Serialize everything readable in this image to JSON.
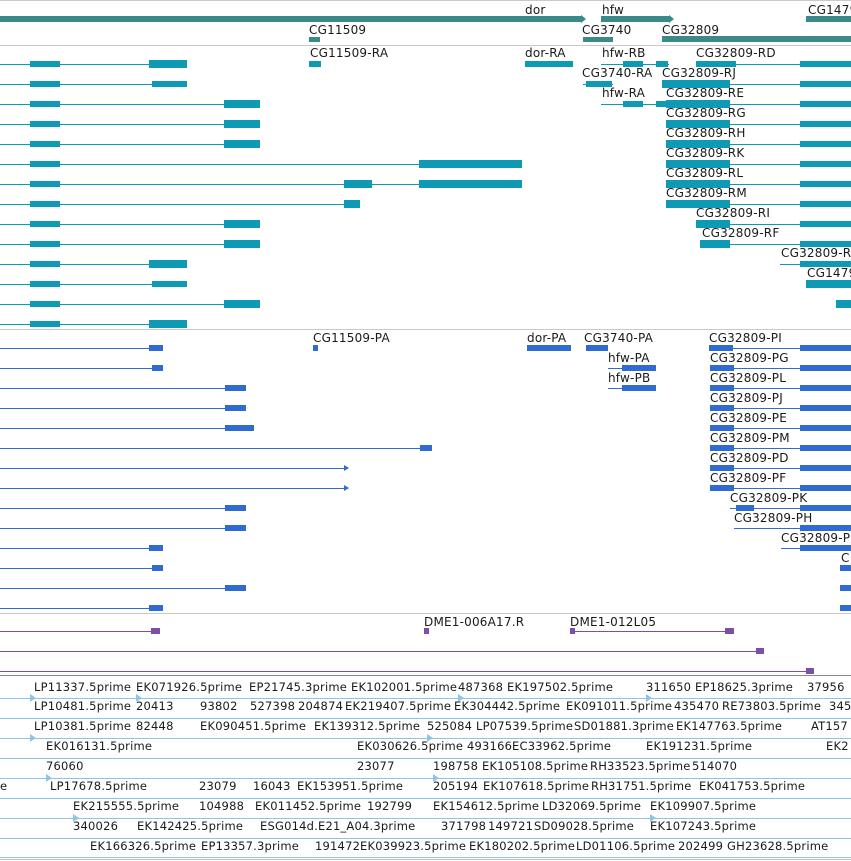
{
  "genes": {
    "labels": [
      "dor",
      "hfw",
      "CG1479",
      "CG11509",
      "CG3740",
      "CG32809"
    ]
  },
  "transcripts": {
    "labels": [
      "CG11509-RA",
      "dor-RA",
      "hfw-RB",
      "CG32809-RD",
      "CG3740-RA",
      "CG32809-RJ",
      "hfw-RA",
      "CG32809-RE",
      "CG32809-RG",
      "CG32809-RH",
      "CG32809-RK",
      "CG32809-RL",
      "CG32809-RM",
      "CG32809-RI",
      "CG32809-RF",
      "CG32809-R",
      "CG1479"
    ]
  },
  "proteins": {
    "labels": [
      "CG11509-PA",
      "dor-PA",
      "CG3740-PA",
      "CG32809-PI",
      "hfw-PA",
      "CG32809-PG",
      "hfw-PB",
      "CG32809-PL",
      "CG32809-PJ",
      "CG32809-PE",
      "CG32809-PM",
      "CG32809-PD",
      "CG32809-PF",
      "CG32809-PK",
      "CG32809-PH",
      "CG32809-P",
      "C"
    ]
  },
  "clones": {
    "labels": [
      "DME1-006A17.R",
      "DME1-012L05"
    ]
  },
  "ests": {
    "rows": [
      [
        "LP11337.5prime",
        "EK071926.5prime",
        "EP21745.3prime",
        "EK102001.5prime",
        "487368",
        "EK197502.5prime",
        "311650",
        "EP18625.3prime",
        "37956"
      ],
      [
        "LP10481.5prime",
        "20413",
        "93802",
        "527398",
        "204874",
        "EK219407.5prime",
        "EK304442.5prime",
        "EK091011.5prime",
        "435470",
        "RE73803.5prime",
        "345"
      ],
      [
        "LP10381.5prime",
        "82448",
        "EK090451.5prime",
        "EK139312.5prime",
        "525084",
        "LP07539.5prime",
        "SD01881.3prime",
        "EK147763.5prime",
        "AT157"
      ],
      [
        "EK016131.5prime",
        "EK030626.5prime",
        "493166",
        "EC33962.5prime",
        "EK191231.5prime",
        "EK2"
      ],
      [
        "76060",
        "23077",
        "198758",
        "EK105108.5prime",
        "RH33523.5prime",
        "514070"
      ],
      [
        "e",
        "LP17678.5prime",
        "23079",
        "16043",
        "EK153951.5prime",
        "205194",
        "EK107618.5prime",
        "RH31751.5prime",
        "EK041753.5prime"
      ],
      [
        "EK215555.5prime",
        "104988",
        "EK011452.5prime",
        "192799",
        "EK154612.5prime",
        "LD32069.5prime",
        "EK109907.5prime"
      ],
      [
        "340026",
        "EK142425.5prime",
        "ESG014d.E21_A04.3prime",
        "371798",
        "149721",
        "SD09028.5prime",
        "EK107243.5prime"
      ],
      [
        "EK166326.5prime",
        "EP13357.3prime",
        "191472",
        "EK039923.5prime",
        "EK180202.5prime",
        "LD01106.5prime",
        "202499",
        "GH23628.5prime"
      ]
    ]
  },
  "colors": {
    "gene": "#3a8a8a",
    "transcript": "#0e9ab5",
    "protein": "#2f6bd0",
    "cdna": "#7b4fa8",
    "est": "#8ec4e8"
  }
}
